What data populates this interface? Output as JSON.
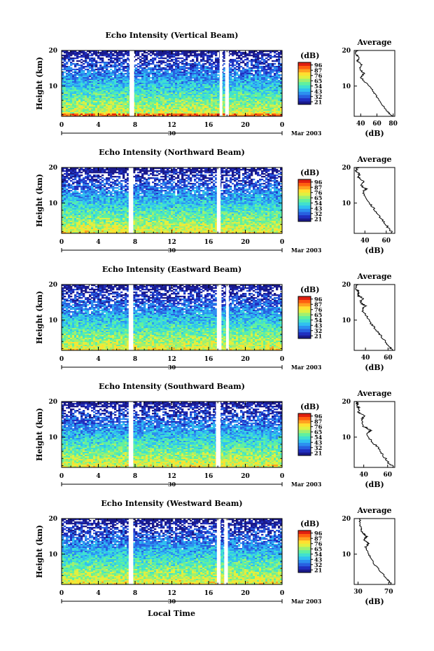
{
  "figure": {
    "bottom_xlabel": "Local Time",
    "date_label": "Mar 2003",
    "date_day": "30"
  },
  "colorbar": {
    "unit": "(dB)",
    "ticks": [
      "96",
      "87",
      "76",
      "65",
      "54",
      "43",
      "32",
      "21"
    ],
    "colors": [
      "#1a1a8c",
      "#2030c0",
      "#2860e0",
      "#2c90f0",
      "#30c0f0",
      "#40e0d0",
      "#60f0a0",
      "#a0f070",
      "#e0f040",
      "#ffe030",
      "#ffa020",
      "#ff6010",
      "#e02010"
    ]
  },
  "chart_data": [
    {
      "type": "heatmap",
      "title": "Echo Intensity (Vertical Beam)",
      "ylabel": "Height (km)",
      "x_ticks": [
        "0",
        "4",
        "8",
        "12",
        "16",
        "20",
        "0"
      ],
      "xlim": [
        0,
        24
      ],
      "y_ticks": [
        "10",
        "20"
      ],
      "ylim": [
        1.5,
        20
      ],
      "gaps_hours": [
        [
          7.4,
          7.9
        ],
        [
          17.2,
          17.5
        ],
        [
          17.8,
          18.2
        ]
      ],
      "profile": {
        "title": "Average",
        "xlabel": "(dB)",
        "x_ticks": [
          "40",
          "60",
          "80"
        ],
        "xlim": [
          32,
          82
        ],
        "y_ticks": [
          "10",
          "20"
        ],
        "ylim": [
          1.5,
          20
        ],
        "points": [
          [
            79,
            1.5
          ],
          [
            72,
            3
          ],
          [
            66,
            5
          ],
          [
            60,
            7
          ],
          [
            54,
            9
          ],
          [
            46,
            11
          ],
          [
            40,
            12.5
          ],
          [
            44,
            13.5
          ],
          [
            38,
            15
          ],
          [
            42,
            16
          ],
          [
            36,
            17
          ],
          [
            38,
            18
          ],
          [
            34,
            19
          ],
          [
            35,
            20
          ]
        ]
      }
    },
    {
      "type": "heatmap",
      "title": "Echo Intensity (Northward Beam)",
      "ylabel": "Height (km)",
      "x_ticks": [
        "0",
        "4",
        "8",
        "12",
        "16",
        "20",
        "0"
      ],
      "xlim": [
        0,
        24
      ],
      "y_ticks": [
        "10",
        "20"
      ],
      "ylim": [
        1.5,
        20
      ],
      "gaps_hours": [
        [
          7.3,
          7.8
        ],
        [
          16.9,
          17.3
        ]
      ],
      "profile": {
        "title": "Average",
        "xlabel": "(dB)",
        "x_ticks": [
          "40",
          "60"
        ],
        "xlim": [
          30,
          68
        ],
        "y_ticks": [
          "10",
          "20"
        ],
        "ylim": [
          1.5,
          20
        ],
        "points": [
          [
            66,
            1.5
          ],
          [
            62,
            3
          ],
          [
            57,
            5
          ],
          [
            52,
            7
          ],
          [
            47,
            9
          ],
          [
            42,
            11
          ],
          [
            38,
            13
          ],
          [
            41,
            14
          ],
          [
            36,
            15
          ],
          [
            39,
            16
          ],
          [
            34,
            17
          ],
          [
            35,
            18
          ],
          [
            32,
            19
          ],
          [
            33,
            20
          ]
        ]
      }
    },
    {
      "type": "heatmap",
      "title": "Echo Intensity (Eastward Beam)",
      "ylabel": "Height (km)",
      "x_ticks": [
        "0",
        "4",
        "8",
        "12",
        "16",
        "20",
        "0"
      ],
      "xlim": [
        0,
        24
      ],
      "y_ticks": [
        "10",
        "20"
      ],
      "ylim": [
        1.5,
        20
      ],
      "gaps_hours": [
        [
          7.3,
          7.8
        ],
        [
          16.9,
          17.4
        ],
        [
          17.9,
          18.2
        ]
      ],
      "profile": {
        "title": "Average",
        "xlabel": "(dB)",
        "x_ticks": [
          "40",
          "60"
        ],
        "xlim": [
          30,
          66
        ],
        "y_ticks": [
          "10",
          "20"
        ],
        "ylim": [
          1.5,
          20
        ],
        "points": [
          [
            64,
            1.5
          ],
          [
            60,
            3
          ],
          [
            55,
            5
          ],
          [
            50,
            7
          ],
          [
            45,
            9
          ],
          [
            41,
            11
          ],
          [
            37,
            13
          ],
          [
            40,
            14
          ],
          [
            35,
            15
          ],
          [
            38,
            16
          ],
          [
            33,
            17
          ],
          [
            34,
            18
          ],
          [
            31,
            19
          ],
          [
            32,
            20
          ]
        ]
      }
    },
    {
      "type": "heatmap",
      "title": "Echo Intensity (Southward Beam)",
      "ylabel": "Height (km)",
      "x_ticks": [
        "0",
        "4",
        "8",
        "12",
        "16",
        "20",
        "0"
      ],
      "xlim": [
        0,
        24
      ],
      "y_ticks": [
        "10",
        "20"
      ],
      "ylim": [
        1.5,
        20
      ],
      "gaps_hours": [
        [
          7.3,
          7.8
        ],
        [
          16.8,
          17.3
        ]
      ],
      "profile": {
        "title": "Average",
        "xlabel": "(dB)",
        "x_ticks": [
          "40",
          "60"
        ],
        "xlim": [
          32,
          66
        ],
        "y_ticks": [
          "10",
          "20"
        ],
        "ylim": [
          1.5,
          20
        ],
        "points": [
          [
            65,
            1.5
          ],
          [
            60,
            3
          ],
          [
            56,
            5
          ],
          [
            52,
            7
          ],
          [
            46,
            9
          ],
          [
            43,
            11
          ],
          [
            46,
            12
          ],
          [
            40,
            13
          ],
          [
            38,
            15
          ],
          [
            41,
            16
          ],
          [
            35,
            17
          ],
          [
            36,
            18
          ],
          [
            34,
            19
          ],
          [
            35,
            20
          ]
        ]
      }
    },
    {
      "type": "heatmap",
      "title": "Echo Intensity (Westward Beam)",
      "ylabel": "Height (km)",
      "x_ticks": [
        "0",
        "4",
        "8",
        "12",
        "16",
        "20",
        "0"
      ],
      "xlim": [
        0,
        24
      ],
      "y_ticks": [
        "10",
        "20"
      ],
      "ylim": [
        1.5,
        20
      ],
      "gaps_hours": [
        [
          7.3,
          7.8
        ],
        [
          16.9,
          17.3
        ],
        [
          17.7,
          18.1
        ]
      ],
      "profile": {
        "title": "Average",
        "xlabel": "(dB)",
        "x_ticks": [
          "30",
          "70"
        ],
        "xlim": [
          25,
          78
        ],
        "y_ticks": [
          "10",
          "20"
        ],
        "ylim": [
          1.5,
          20
        ],
        "points": [
          [
            74,
            1.5
          ],
          [
            68,
            3
          ],
          [
            60,
            5
          ],
          [
            52,
            7
          ],
          [
            46,
            9
          ],
          [
            42,
            11
          ],
          [
            40,
            12
          ],
          [
            44,
            13
          ],
          [
            38,
            14
          ],
          [
            41,
            15
          ],
          [
            36,
            16
          ],
          [
            34,
            17
          ],
          [
            32,
            19
          ],
          [
            33,
            20
          ]
        ]
      }
    }
  ]
}
